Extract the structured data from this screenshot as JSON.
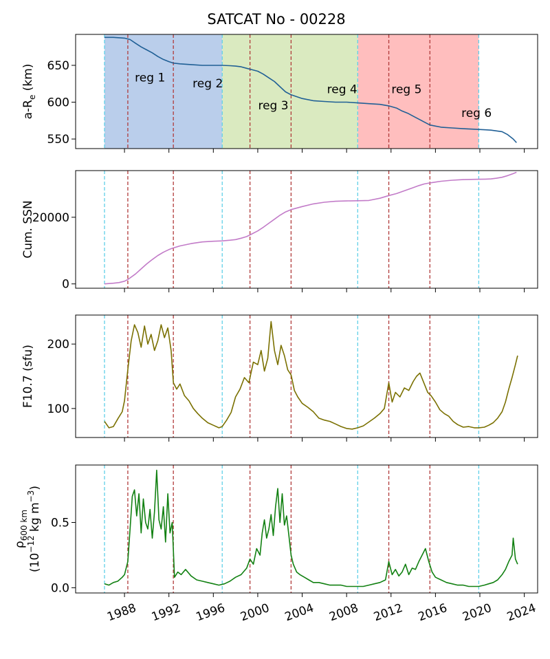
{
  "chart_data": {
    "type": "line",
    "title": "SATCAT No - 00228",
    "x_axis": {
      "range": [
        1983.6,
        2025.2
      ],
      "ticks": [
        1988,
        1992,
        1996,
        2000,
        2004,
        2008,
        2012,
        2016,
        2020,
        2024
      ],
      "tick_labels": [
        "1988",
        "1992",
        "1996",
        "2000",
        "2004",
        "2008",
        "2012",
        "2016",
        "2020",
        "2024"
      ],
      "tick_label_rotation": "slanted",
      "shared_by": "all panels"
    },
    "regions": [
      {
        "label": "reg 1",
        "start": 1986.2,
        "end": 1996.8,
        "shade": "#aec6e8"
      },
      {
        "label": "reg 2",
        "start": 1986.2,
        "end": 1996.8,
        "shade": "#aec6e8"
      },
      {
        "label": "reg 3",
        "start": 1996.8,
        "end": 2009.0,
        "shade": "#d4e6b5"
      },
      {
        "label": "reg 4",
        "start": 1996.8,
        "end": 2009.0,
        "shade": "#d4e6b5"
      },
      {
        "label": "reg 5",
        "start": 2009.0,
        "end": 2019.9,
        "shade": "#ffb3b3"
      },
      {
        "label": "reg 6",
        "start": 2009.0,
        "end": 2019.9,
        "shade": "#ffb3b3"
      }
    ],
    "shaded_spans": [
      {
        "start": 1986.2,
        "end": 1996.8,
        "color": "#aec6e8"
      },
      {
        "start": 1996.8,
        "end": 2009.0,
        "color": "#d4e6b5"
      },
      {
        "start": 2009.0,
        "end": 2019.9,
        "color": "#ffb3b3"
      }
    ],
    "cycle_boundaries": {
      "dates": [
        1986.2,
        1996.8,
        2009.0,
        2019.9
      ],
      "style": "dashed",
      "color": "#5fd0e8"
    },
    "regime_boundaries": {
      "dates": [
        1988.3,
        1992.4,
        1999.3,
        2003.0,
        2011.8,
        2015.5
      ],
      "style": "dashed",
      "color": "#b03a3a"
    },
    "panels": [
      {
        "id": "altitude",
        "ylabel": "a-R",
        "ylabel_subscript": "e",
        "ylabel_suffix": " (km)",
        "ylim": [
          537,
          692
        ],
        "yticks": [
          550,
          600,
          650
        ],
        "show_regions": true,
        "region_labels": [
          {
            "text": "reg 1",
            "x": 1990.3,
            "y": 628
          },
          {
            "text": "reg 2",
            "x": 1995.5,
            "y": 620
          },
          {
            "text": "reg 3",
            "x": 2001.4,
            "y": 590
          },
          {
            "text": "reg 4",
            "x": 2007.6,
            "y": 612
          },
          {
            "text": "reg 5",
            "x": 2013.4,
            "y": 612
          },
          {
            "text": "reg 6",
            "x": 2019.7,
            "y": 580
          }
        ],
        "series": [
          {
            "color": "#1f5f95",
            "x": [
              1986.2,
              1987.0,
              1988.0,
              1988.5,
              1989.0,
              1989.5,
              1990.0,
              1990.5,
              1991.0,
              1991.5,
              1992.0,
              1992.4,
              1993.0,
              1994.0,
              1995.0,
              1996.0,
              1996.8,
              1997.5,
              1998.0,
              1998.5,
              1999.0,
              1999.5,
              2000.0,
              2000.5,
              2001.0,
              2001.5,
              2002.0,
              2002.5,
              2003.0,
              2004.0,
              2005.0,
              2006.0,
              2007.0,
              2008.0,
              2009.0,
              2010.0,
              2011.0,
              2011.8,
              2012.5,
              2013.0,
              2013.5,
              2014.0,
              2014.5,
              2015.0,
              2015.5,
              2016.5,
              2017.5,
              2018.5,
              2019.9,
              2020.5,
              2021.0,
              2021.5,
              2022.0,
              2022.5,
              2023.0,
              2023.3
            ],
            "y": [
              688,
              688,
              687,
              685,
              680,
              675,
              671,
              667,
              662,
              658,
              655,
              653,
              652,
              651,
              650,
              650,
              650,
              649.5,
              649,
              648,
              646,
              644,
              642,
              638,
              633,
              628,
              621,
              614,
              610,
              605,
              602,
              601,
              600,
              600,
              599,
              598,
              597,
              595,
              592,
              588,
              585,
              581,
              577,
              573,
              569,
              566,
              565,
              564,
              563,
              562.5,
              562,
              561,
              560,
              556,
              550,
              545
            ]
          }
        ]
      },
      {
        "id": "cumulative-ssn",
        "ylabel": "Cum. SSN",
        "ylim": [
          -1300,
          34000
        ],
        "yticks": [
          0,
          20000
        ],
        "series": [
          {
            "color": "#c27bc8",
            "x": [
              1986.2,
              1987.0,
              1987.5,
              1988.0,
              1988.3,
              1989.0,
              1989.5,
              1990.0,
              1990.5,
              1991.0,
              1991.5,
              1992.0,
              1992.4,
              1993.0,
              1994.0,
              1995.0,
              1996.0,
              1996.8,
              1997.5,
              1998.0,
              1998.5,
              1999.0,
              1999.3,
              2000.0,
              2000.5,
              2001.0,
              2001.5,
              2002.0,
              2002.5,
              2003.0,
              2004.0,
              2005.0,
              2006.0,
              2007.0,
              2008.0,
              2009.0,
              2010.0,
              2011.0,
              2011.8,
              2012.5,
              2013.0,
              2013.5,
              2014.0,
              2014.5,
              2015.0,
              2015.5,
              2016.5,
              2017.5,
              2018.5,
              2019.9,
              2020.5,
              2021.0,
              2021.5,
              2022.0,
              2022.5,
              2023.0,
              2023.3
            ],
            "y": [
              0,
              200,
              400,
              800,
              1300,
              3000,
              4500,
              6000,
              7300,
              8500,
              9500,
              10300,
              10800,
              11400,
              12100,
              12600,
              12800,
              12900,
              13100,
              13300,
              13700,
              14200,
              14700,
              15900,
              17000,
              18200,
              19400,
              20600,
              21600,
              22300,
              23200,
              24000,
              24500,
              24800,
              24900,
              24950,
              25050,
              25700,
              26500,
              27100,
              27700,
              28300,
              28900,
              29500,
              30000,
              30300,
              30800,
              31100,
              31300,
              31400,
              31450,
              31500,
              31700,
              32000,
              32500,
              33100,
              33500
            ]
          }
        ]
      },
      {
        "id": "f107",
        "ylabel": "F10.7 (sfu)",
        "ylim": [
          55,
          245
        ],
        "yticks": [
          100,
          200
        ],
        "series": [
          {
            "color": "#7a7000",
            "x": [
              1986.2,
              1986.6,
              1987.0,
              1987.4,
              1987.8,
              1988.0,
              1988.3,
              1988.6,
              1988.9,
              1989.2,
              1989.5,
              1989.8,
              1990.1,
              1990.4,
              1990.7,
              1991.0,
              1991.3,
              1991.6,
              1991.9,
              1992.2,
              1992.4,
              1992.7,
              1993.0,
              1993.4,
              1993.8,
              1994.2,
              1994.6,
              1995.0,
              1995.5,
              1996.0,
              1996.5,
              1996.8,
              1997.2,
              1997.6,
              1998.0,
              1998.4,
              1998.8,
              1999.2,
              1999.6,
              2000.0,
              2000.3,
              2000.6,
              2000.9,
              2001.2,
              2001.5,
              2001.8,
              2002.1,
              2002.4,
              2002.7,
              2003.0,
              2003.3,
              2003.6,
              2004.0,
              2004.5,
              2005.0,
              2005.5,
              2006.0,
              2006.5,
              2007.0,
              2007.5,
              2008.0,
              2008.5,
              2009.0,
              2009.5,
              2010.0,
              2010.5,
              2011.0,
              2011.4,
              2011.8,
              2012.1,
              2012.4,
              2012.8,
              2013.2,
              2013.6,
              2014.0,
              2014.3,
              2014.6,
              2015.0,
              2015.3,
              2015.6,
              2016.0,
              2016.4,
              2016.8,
              2017.2,
              2017.6,
              2018.0,
              2018.5,
              2019.0,
              2019.5,
              2019.9,
              2020.4,
              2020.8,
              2021.2,
              2021.6,
              2022.0,
              2022.3,
              2022.6,
              2022.9,
              2023.2,
              2023.4
            ],
            "y": [
              80,
              70,
              72,
              84,
              95,
              112,
              160,
              205,
              230,
              218,
              195,
              228,
              200,
              215,
              190,
              205,
              230,
              210,
              225,
              190,
              140,
              130,
              138,
              120,
              112,
              100,
              92,
              85,
              78,
              74,
              70,
              72,
              82,
              94,
              118,
              130,
              148,
              140,
              172,
              168,
              190,
              158,
              178,
              235,
              190,
              168,
              198,
              182,
              160,
              152,
              128,
              118,
              108,
              102,
              95,
              85,
              82,
              80,
              76,
              72,
              69,
              68,
              70,
              73,
              79,
              85,
              92,
              100,
              140,
              110,
              125,
              118,
              132,
              128,
              142,
              150,
              155,
              138,
              125,
              120,
              110,
              98,
              92,
              88,
              80,
              75,
              71,
              72,
              70,
              70,
              71,
              74,
              78,
              85,
              95,
              110,
              130,
              148,
              168,
              182
            ]
          }
        ]
      },
      {
        "id": "density",
        "ylabel_prefix": "ρ",
        "ylabel_subscript": "600 km",
        "ylabel_line2": "(10",
        "ylabel_superscript": "−12",
        "ylabel_line2_suffix": " kg m",
        "ylabel_line2_superscript": "−3",
        "ylabel_close": ")",
        "ylim": [
          -0.04,
          0.94
        ],
        "yticks": [
          0.0,
          0.5
        ],
        "ytick_labels": [
          "0.0",
          "0.5"
        ],
        "series": [
          {
            "color": "#118011",
            "x": [
              1986.2,
              1986.6,
              1987.0,
              1987.4,
              1987.8,
              1988.0,
              1988.3,
              1988.5,
              1988.7,
              1988.9,
              1989.1,
              1989.3,
              1989.5,
              1989.7,
              1989.9,
              1990.1,
              1990.3,
              1990.5,
              1990.7,
              1990.9,
              1991.1,
              1991.3,
              1991.5,
              1991.7,
              1991.9,
              1992.1,
              1992.3,
              1992.5,
              1992.8,
              1993.1,
              1993.5,
              1994.0,
              1994.5,
              1995.0,
              1995.5,
              1996.0,
              1996.5,
              1997.0,
              1997.5,
              1998.0,
              1998.5,
              1999.0,
              1999.3,
              1999.6,
              1999.9,
              2000.2,
              2000.4,
              2000.6,
              2000.8,
              2001.0,
              2001.2,
              2001.4,
              2001.6,
              2001.8,
              2002.0,
              2002.2,
              2002.4,
              2002.6,
              2002.8,
              2003.0,
              2003.2,
              2003.5,
              2003.8,
              2004.2,
              2004.6,
              2005.0,
              2005.5,
              2006.0,
              2006.5,
              2007.0,
              2007.5,
              2008.0,
              2008.5,
              2009.0,
              2009.5,
              2010.0,
              2010.5,
              2011.0,
              2011.5,
              2011.8,
              2012.1,
              2012.4,
              2012.7,
              2013.0,
              2013.3,
              2013.6,
              2013.9,
              2014.2,
              2014.5,
              2014.8,
              2015.1,
              2015.4,
              2015.7,
              2016.0,
              2016.5,
              2017.0,
              2017.5,
              2018.0,
              2018.5,
              2019.0,
              2019.5,
              2019.9,
              2020.4,
              2020.8,
              2021.2,
              2021.6,
              2022.0,
              2022.3,
              2022.6,
              2022.9,
              2023.0,
              2023.2,
              2023.4
            ],
            "y": [
              0.03,
              0.02,
              0.04,
              0.05,
              0.08,
              0.1,
              0.2,
              0.45,
              0.7,
              0.75,
              0.55,
              0.72,
              0.42,
              0.68,
              0.5,
              0.45,
              0.6,
              0.38,
              0.58,
              0.9,
              0.52,
              0.45,
              0.62,
              0.35,
              0.72,
              0.42,
              0.5,
              0.08,
              0.12,
              0.1,
              0.14,
              0.09,
              0.06,
              0.05,
              0.04,
              0.03,
              0.02,
              0.03,
              0.05,
              0.08,
              0.1,
              0.15,
              0.22,
              0.18,
              0.3,
              0.25,
              0.42,
              0.52,
              0.38,
              0.45,
              0.56,
              0.4,
              0.62,
              0.76,
              0.5,
              0.72,
              0.48,
              0.55,
              0.4,
              0.25,
              0.18,
              0.12,
              0.1,
              0.08,
              0.06,
              0.04,
              0.04,
              0.03,
              0.02,
              0.02,
              0.02,
              0.01,
              0.01,
              0.01,
              0.01,
              0.02,
              0.03,
              0.04,
              0.06,
              0.2,
              0.1,
              0.14,
              0.09,
              0.12,
              0.18,
              0.1,
              0.15,
              0.14,
              0.2,
              0.25,
              0.3,
              0.2,
              0.12,
              0.08,
              0.06,
              0.04,
              0.03,
              0.02,
              0.02,
              0.01,
              0.01,
              0.01,
              0.02,
              0.03,
              0.04,
              0.06,
              0.1,
              0.14,
              0.2,
              0.25,
              0.38,
              0.22,
              0.18
            ]
          }
        ]
      }
    ]
  }
}
